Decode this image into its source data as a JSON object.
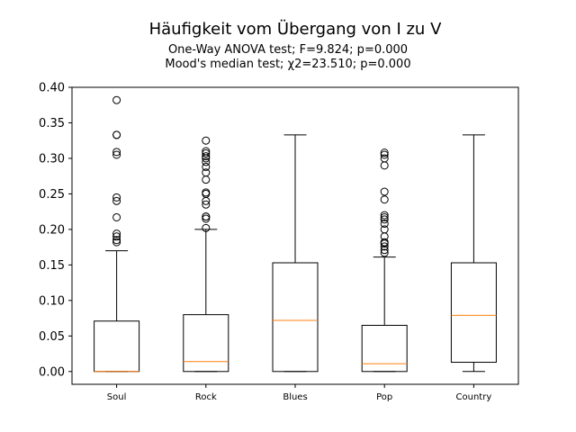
{
  "chart_data": {
    "type": "box",
    "title": "Häufigkeit vom Übergang von I zu V",
    "subtitle_lines": [
      "One-Way ANOVA test; F=9.824; p=0.000",
      "Mood's median test; χ2=23.510; p=0.000"
    ],
    "xlabel": "",
    "ylabel": "",
    "ylim": [
      -0.018,
      0.4
    ],
    "yticks": [
      0.0,
      0.05,
      0.1,
      0.15,
      0.2,
      0.25,
      0.3,
      0.35,
      0.4
    ],
    "ytick_labels": [
      "0.00",
      "0.05",
      "0.10",
      "0.15",
      "0.20",
      "0.25",
      "0.30",
      "0.35",
      "0.40"
    ],
    "grid": false,
    "colors": {
      "box": "#000000",
      "median": "#ff7f0e",
      "outlier": "#000000"
    },
    "categories": [
      "Soul",
      "Rock",
      "Blues",
      "Pop",
      "Country"
    ],
    "boxes": [
      {
        "label": "Soul",
        "whisker_low": 0.0,
        "q1": 0.0,
        "median": 0.0,
        "q3": 0.071,
        "whisker_high": 0.17,
        "outliers": [
          0.182,
          0.185,
          0.19,
          0.194,
          0.217,
          0.24,
          0.245,
          0.305,
          0.309,
          0.333,
          0.333,
          0.382
        ]
      },
      {
        "label": "Rock",
        "whisker_low": 0.0,
        "q1": 0.0,
        "median": 0.014,
        "q3": 0.08,
        "whisker_high": 0.2,
        "outliers": [
          0.202,
          0.215,
          0.218,
          0.218,
          0.235,
          0.24,
          0.25,
          0.252,
          0.27,
          0.28,
          0.288,
          0.295,
          0.3,
          0.303,
          0.307,
          0.31,
          0.325
        ]
      },
      {
        "label": "Blues",
        "whisker_low": 0.0,
        "q1": 0.0,
        "median": 0.072,
        "q3": 0.153,
        "whisker_high": 0.333,
        "outliers": []
      },
      {
        "label": "Pop",
        "whisker_low": 0.0,
        "q1": 0.0,
        "median": 0.011,
        "q3": 0.065,
        "whisker_high": 0.161,
        "outliers": [
          0.167,
          0.171,
          0.176,
          0.18,
          0.182,
          0.19,
          0.2,
          0.208,
          0.214,
          0.217,
          0.22,
          0.242,
          0.253,
          0.29,
          0.3,
          0.305,
          0.308
        ]
      },
      {
        "label": "Country",
        "whisker_low": 0.0,
        "q1": 0.013,
        "median": 0.079,
        "q3": 0.153,
        "whisker_high": 0.333,
        "outliers": []
      }
    ]
  }
}
